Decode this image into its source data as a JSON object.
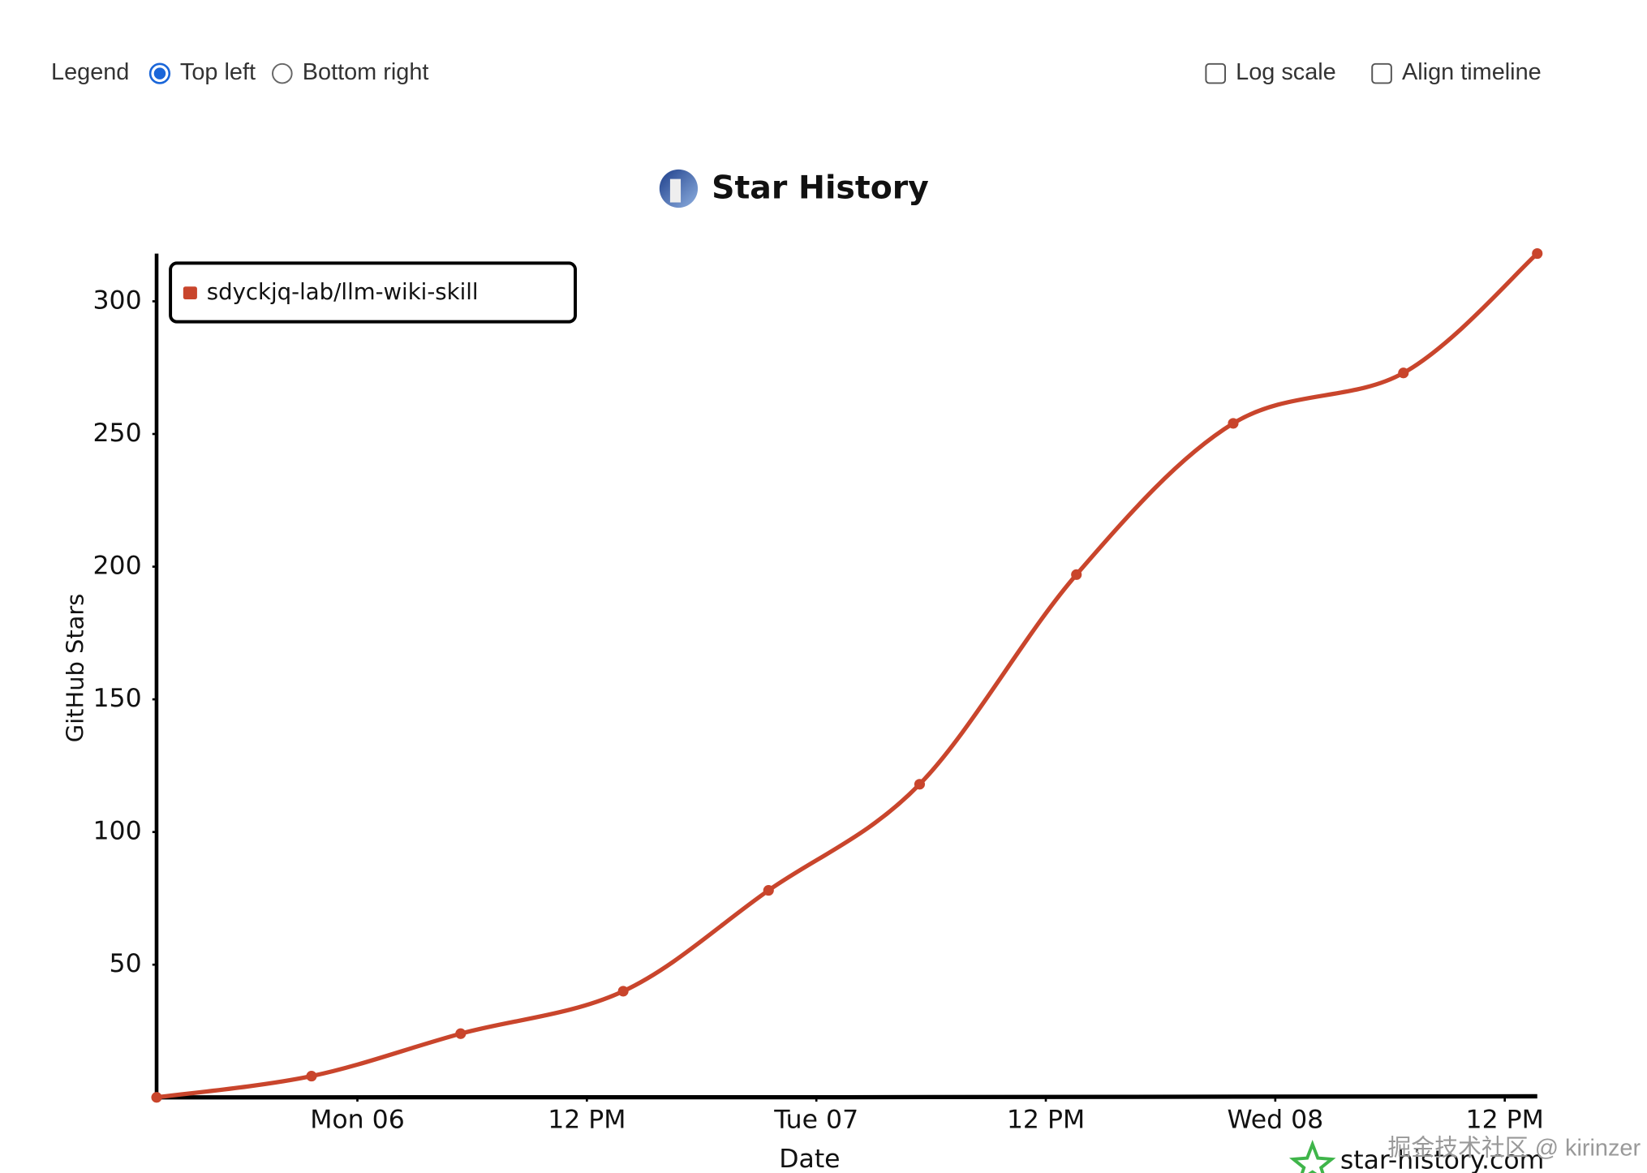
{
  "controls": {
    "legend_label": "Legend",
    "legend_options": [
      "Top left",
      "Bottom right"
    ],
    "log_scale_label": "Log scale",
    "align_timeline_label": "Align timeline"
  },
  "chart_data": {
    "type": "line",
    "title": "Star History",
    "xlabel": "Date",
    "ylabel": "GitHub Stars",
    "x": [
      -10.5,
      -2.4,
      5.4,
      13.9,
      21.5,
      29.4,
      37.6,
      45.8,
      54.7,
      61.7
    ],
    "series": [
      {
        "name": "sdyckjq-lab/llm-wiki-skill",
        "color": "#c9452c",
        "values": [
          0,
          8,
          24,
          40,
          78,
          118,
          197,
          254,
          273,
          318
        ]
      }
    ],
    "xlim": [
      -10.5,
      61.7
    ],
    "xticks": [
      {
        "value": 0,
        "label": "Mon 06"
      },
      {
        "value": 12,
        "label": "12 PM"
      },
      {
        "value": 24,
        "label": "Tue 07"
      },
      {
        "value": 36,
        "label": "12 PM"
      },
      {
        "value": 48,
        "label": "Wed 08"
      },
      {
        "value": 60,
        "label": "12 PM"
      }
    ],
    "ylim": [
      0,
      320
    ],
    "yticks": [
      50,
      100,
      150,
      200,
      250,
      300
    ],
    "legend": "top-left",
    "log_scale": false,
    "align_timeline": false,
    "grid": false,
    "watermark": "star-history.com",
    "credit": "掘金技术社区 @ kirinzer"
  }
}
